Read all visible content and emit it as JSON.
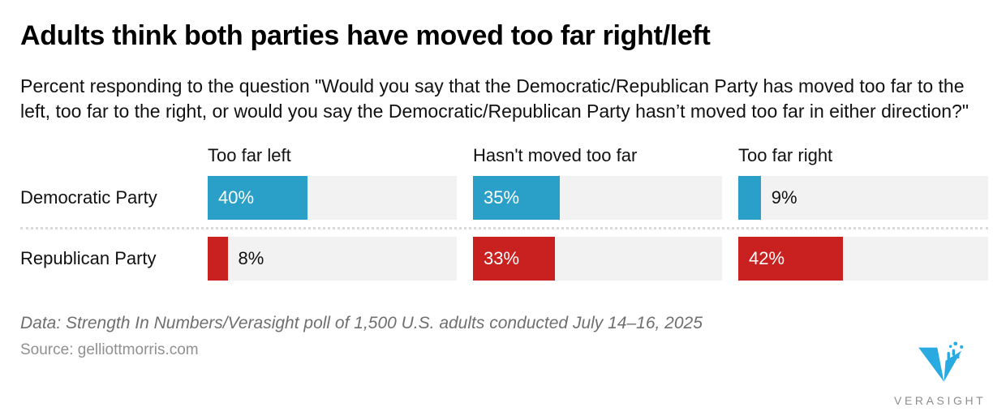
{
  "header": {
    "title": "Adults think both parties have moved too far right/left",
    "subtitle": "Percent responding to the question \"Would you say that the Democratic/Republican Party has moved too far to the left, too far to the right, or would you say the Democratic/Republican Party hasn’t moved too far in either direction?\""
  },
  "chart_data": {
    "type": "bar",
    "orientation": "horizontal",
    "categories": [
      "Too far left",
      "Hasn't moved too far",
      "Too far right"
    ],
    "series": [
      {
        "name": "Democratic Party",
        "values": [
          40,
          35,
          9
        ],
        "color": "#2AA0C9"
      },
      {
        "name": "Republican Party",
        "values": [
          8,
          33,
          42
        ],
        "color": "#C8211F"
      }
    ],
    "value_suffix": "%",
    "xlim": [
      0,
      100
    ],
    "track_color": "#F2F2F2",
    "inside_label_threshold": 15,
    "grid": false,
    "legend_position": "none"
  },
  "footer": {
    "data_note": "Data: Strength In Numbers/Verasight poll of 1,500 U.S. adults conducted July 14–16, 2025",
    "source": "Source: gelliottmorris.com"
  },
  "branding": {
    "logo_text": "VERASIGHT",
    "logo_color": "#29ABE2",
    "logo_text_color": "#8E8E8E"
  }
}
